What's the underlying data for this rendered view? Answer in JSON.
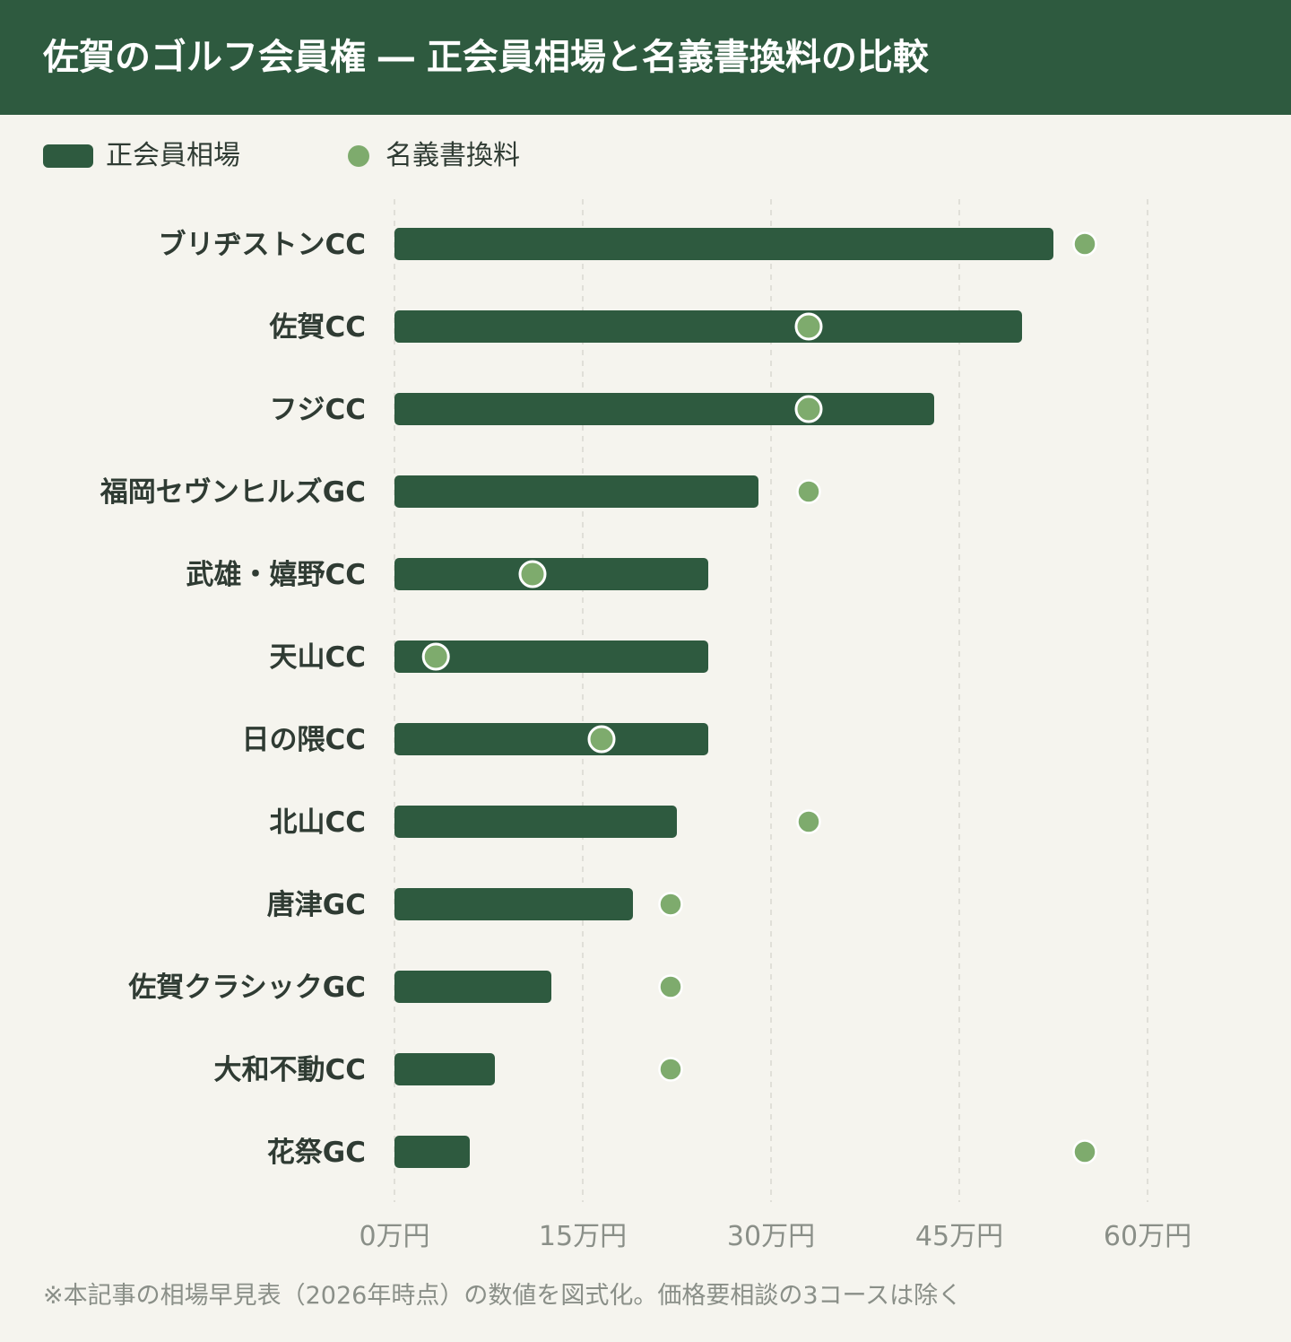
{
  "header": {
    "title": "佐賀のゴルフ会員権 ― 正会員相場と名義書換料の比較"
  },
  "colors": {
    "header_bg": "#2e5a3f",
    "bar": "#2e5a3f",
    "dot": "#7eab6d",
    "background": "#f5f4ee"
  },
  "chart_data": {
    "type": "bar",
    "orientation": "horizontal",
    "title": "佐賀のゴルフ会員権 ― 正会員相場と名義書換料の比較",
    "categories": [
      "ブリヂストンCC",
      "佐賀CC",
      "フジCC",
      "福岡セヴンヒルズGC",
      "武雄・嬉野CC",
      "天山CC",
      "日の隈CC",
      "北山CC",
      "唐津GC",
      "佐賀クラシックGC",
      "大和不動CC",
      "花祭GC"
    ],
    "series": [
      {
        "name": "正会員相場",
        "marker": "bar",
        "values": [
          52.5,
          50,
          43,
          29,
          25,
          25,
          25,
          22.5,
          19,
          12.5,
          8,
          6
        ]
      },
      {
        "name": "名義書換料",
        "marker": "dot",
        "values": [
          55,
          33,
          33,
          33,
          11,
          3.3,
          16.5,
          33,
          22,
          22,
          22,
          55
        ]
      }
    ],
    "xlim": [
      0,
      60
    ],
    "xticks": [
      0,
      15,
      30,
      45,
      60
    ],
    "xtick_labels": [
      "0万円",
      "15万円",
      "30万円",
      "45万円",
      "60万円"
    ],
    "xlabel": "",
    "ylabel": "",
    "grid": "vertical dashed",
    "legend": "top-left"
  },
  "legend": {
    "bar_label": "正会員相場",
    "dot_label": "名義書換料"
  },
  "footnote": "※本記事の相場早見表（2026年時点）の数値を図式化。価格要相談の3コースは除く"
}
